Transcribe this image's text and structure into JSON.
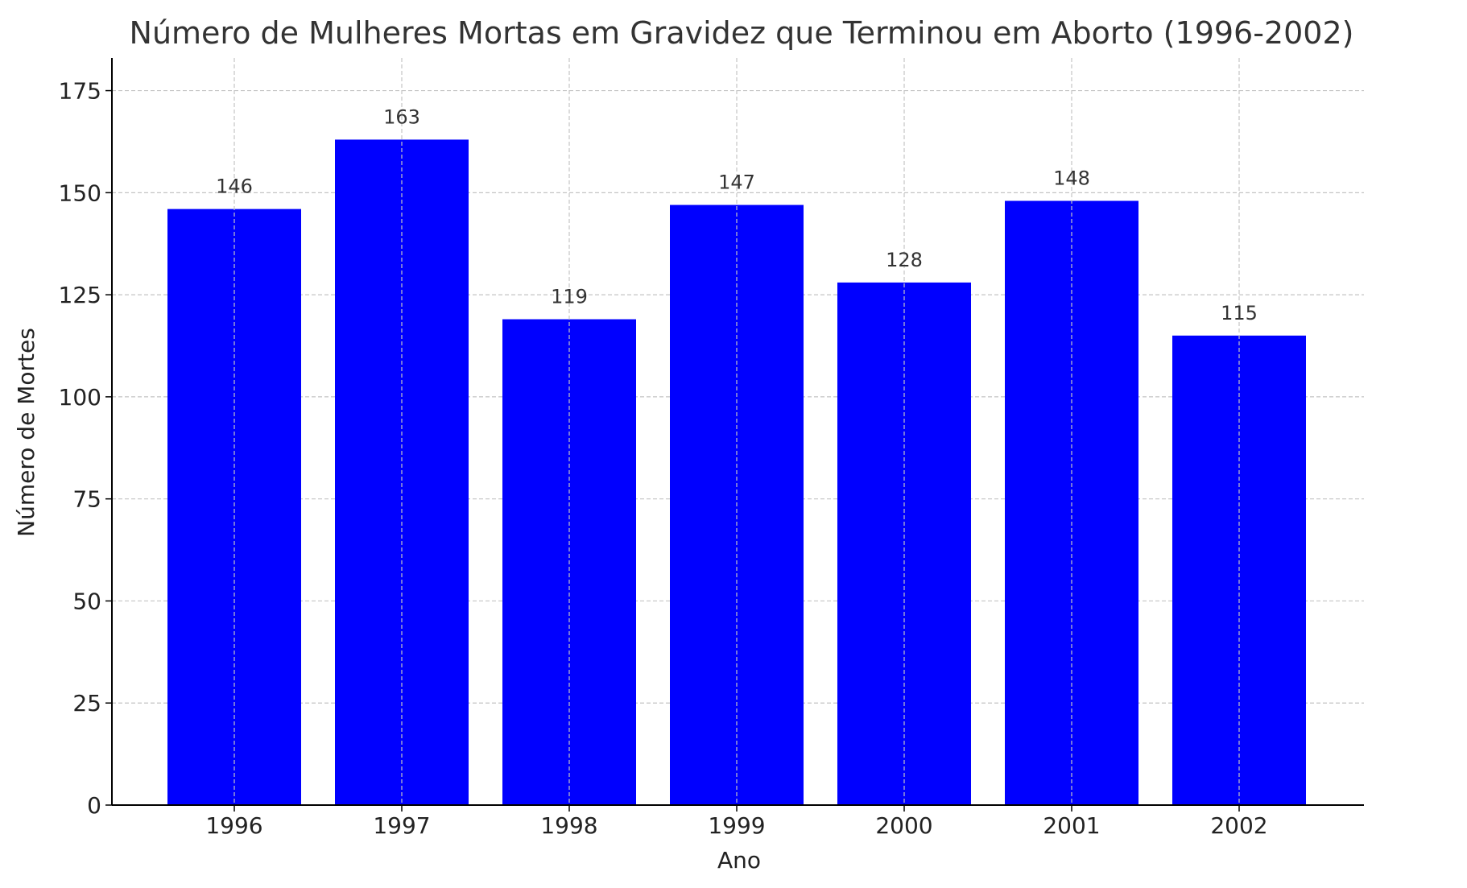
{
  "chart_data": {
    "type": "bar",
    "title": "Número de Mulheres Mortas em Gravidez que Terminou em Aborto (1996-2002)",
    "xlabel": "Ano",
    "ylabel": "Número de Mortes",
    "categories": [
      "1996",
      "1997",
      "1998",
      "1999",
      "2000",
      "2001",
      "2002"
    ],
    "values": [
      146,
      163,
      119,
      147,
      128,
      148,
      115
    ],
    "data_labels": [
      "146",
      "163",
      "119",
      "147",
      "128",
      "148",
      "115"
    ],
    "ylim": [
      0,
      183
    ],
    "yticks": [
      0,
      25,
      50,
      75,
      100,
      125,
      150,
      175
    ],
    "grid": true,
    "bar_color": "#0000ff"
  }
}
